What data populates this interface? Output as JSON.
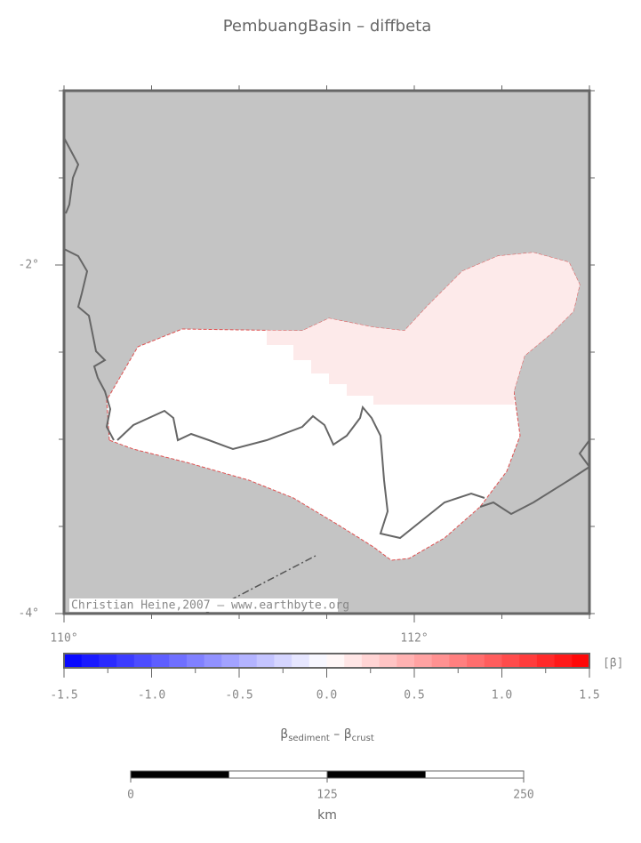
{
  "title": "PembuangBasin – diffbeta",
  "map": {
    "lonlim": [
      110,
      113
    ],
    "latlim": [
      -4,
      -1
    ],
    "minor_step": 0.5,
    "lon_ticks": [
      {
        "value": 110,
        "label": "110°"
      },
      {
        "value": 112,
        "label": "112°"
      }
    ],
    "lat_ticks": [
      {
        "value": -2,
        "label": "-2°"
      },
      {
        "value": -4,
        "label": "-4°"
      }
    ],
    "credit": "Christian Heine,2007 – www.earthbyte.org"
  },
  "colorbar": {
    "range": [
      -1.5,
      1.5
    ],
    "step": 0.1,
    "colors": [
      "#0000ff",
      "#ffffff",
      "#ff0000"
    ],
    "ticks": [
      -1.5,
      {
        "value": -1,
        "label": "-1.0"
      },
      -0.5,
      {
        "value": 0,
        "label": "0.0"
      },
      0.5,
      {
        "value": 1,
        "label": "1.0"
      },
      1.5
    ],
    "unit": "[β]",
    "label_main": "β",
    "label_sub1": "sediment",
    "label_op": " – ",
    "label_main2": "β",
    "label_sub2": "crust"
  },
  "scalebar": {
    "ticks": [
      0,
      125,
      250
    ],
    "unit": "km"
  }
}
